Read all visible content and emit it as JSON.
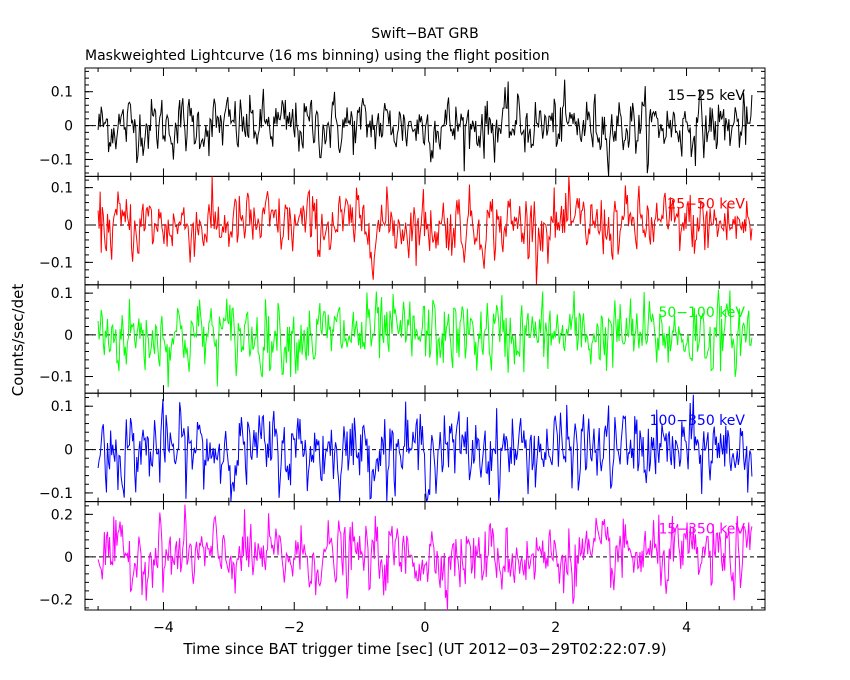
{
  "title": "Swift−BAT GRB",
  "subtitle": "Maskweighted Lightcurve (16 ms binning) using the flight position",
  "chart_data": {
    "type": "line",
    "title": "Swift−BAT GRB",
    "subtitle": "Maskweighted Lightcurve (16 ms binning) using the flight position",
    "xlabel": "Time since BAT trigger time [sec] (UT 2012−03−29T02:22:07.9)",
    "ylabel": "Counts/sec/det",
    "xlim": [
      -5.2,
      5.2
    ],
    "x_ticks": [
      -4,
      -2,
      0,
      2,
      4
    ],
    "x_tick_labels": [
      "−4",
      "−2",
      "0",
      "2",
      "4"
    ],
    "x_range_data": [
      -5.0,
      5.0
    ],
    "bin_size_sec": 0.016,
    "grid": false,
    "panels": [
      {
        "name": "15−25 keV",
        "color": "#000000",
        "ylim": [
          -0.15,
          0.17
        ],
        "y_ticks": [
          -0.1,
          0,
          0.1
        ],
        "y_tick_labels": [
          "−0.1",
          "0",
          "0.1"
        ],
        "noise_amplitude": 0.055
      },
      {
        "name": "25−50 keV",
        "color": "#ff0000",
        "ylim": [
          -0.16,
          0.13
        ],
        "y_ticks": [
          -0.1,
          0,
          0.1
        ],
        "y_tick_labels": [
          "−0.1",
          "0",
          "0.1"
        ],
        "noise_amplitude": 0.055
      },
      {
        "name": "50−100 keV",
        "color": "#00ff00",
        "ylim": [
          -0.14,
          0.12
        ],
        "y_ticks": [
          -0.1,
          0,
          0.1
        ],
        "y_tick_labels": [
          "−0.1",
          "0",
          "0.1"
        ],
        "noise_amplitude": 0.055
      },
      {
        "name": "100−350 keV",
        "color": "#0000ff",
        "ylim": [
          -0.12,
          0.13
        ],
        "y_ticks": [
          -0.1,
          0,
          0.1
        ],
        "y_tick_labels": [
          "−0.1",
          "0",
          "0.1"
        ],
        "noise_amplitude": 0.055
      },
      {
        "name": "15−350 keV",
        "color": "#ff00ff",
        "ylim": [
          -0.25,
          0.26
        ],
        "y_ticks": [
          -0.2,
          0,
          0.2
        ],
        "y_tick_labels": [
          "−0.2",
          "0",
          "0.2"
        ],
        "noise_amplitude": 0.1
      }
    ]
  }
}
